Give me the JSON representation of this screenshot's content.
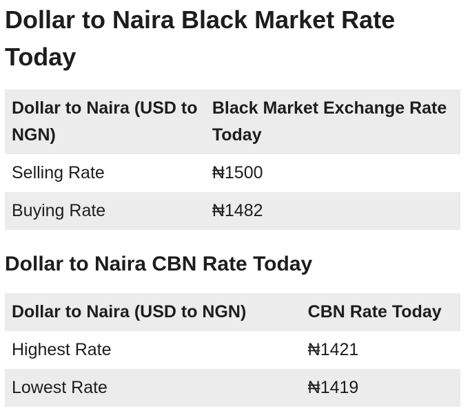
{
  "colors": {
    "background": "#ffffff",
    "text": "#1d1d1d",
    "shade": "#ececec"
  },
  "sections": [
    {
      "heading": "Dollar to Naira Black Market Rate Today",
      "table": {
        "headers": [
          "Dollar to Naira (USD to NGN)",
          "Black Market Exchange Rate Today"
        ],
        "rows": [
          {
            "label": "Selling Rate",
            "value": "₦1500"
          },
          {
            "label": "Buying Rate",
            "value": "₦1482"
          }
        ]
      }
    },
    {
      "heading": "Dollar to Naira CBN Rate Today",
      "table": {
        "headers": [
          "Dollar to Naira (USD to NGN)",
          "CBN Rate Today"
        ],
        "rows": [
          {
            "label": "Highest Rate",
            "value": "₦1421"
          },
          {
            "label": "Lowest Rate",
            "value": "₦1419"
          }
        ]
      }
    }
  ]
}
